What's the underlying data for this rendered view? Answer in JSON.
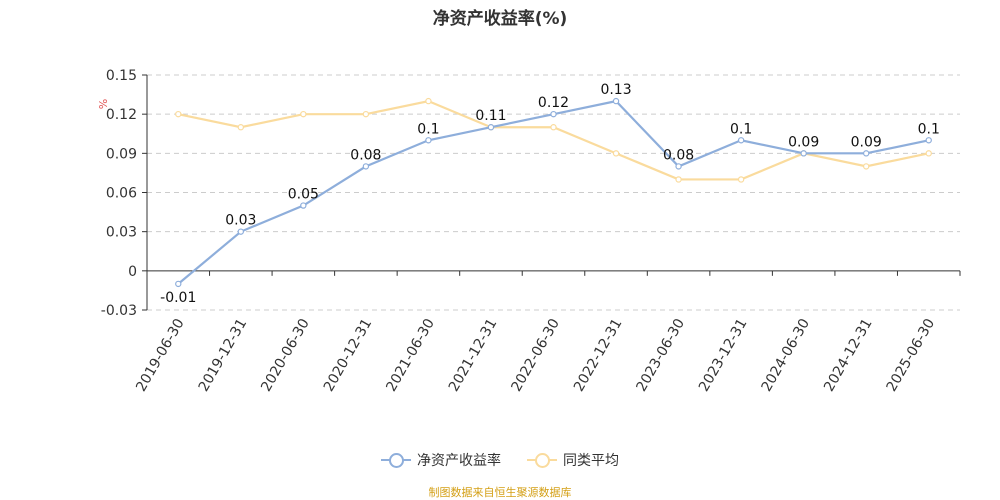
{
  "colors": {
    "series_main": "#8eaedb",
    "series_avg": "#fadb9d",
    "unit": "#e05555",
    "source": "#d4a017"
  },
  "chart_data": {
    "type": "line",
    "title": "净资产收益率(%)",
    "ylabel": "%",
    "categories": [
      "2019-06-30",
      "2019-12-31",
      "2020-06-30",
      "2020-12-31",
      "2021-06-30",
      "2021-12-31",
      "2022-06-30",
      "2022-12-31",
      "2023-06-30",
      "2023-12-31",
      "2024-06-30",
      "2024-12-31",
      "2025-06-30"
    ],
    "y_ticks": [
      "0.15",
      "0.12",
      "0.09",
      "0.06",
      "0.03",
      "0",
      "-0.03"
    ],
    "ylim": [
      -0.03,
      0.15
    ],
    "grid": true,
    "series": [
      {
        "name": "净资产收益率",
        "values": [
          -0.01,
          0.03,
          0.05,
          0.08,
          0.1,
          0.11,
          0.12,
          0.13,
          0.08,
          0.1,
          0.09,
          0.09,
          0.1
        ],
        "labels": [
          "-0.01",
          "0.03",
          "0.05",
          "0.08",
          "0.1",
          "0.11",
          "0.12",
          "0.13",
          "0.08",
          "0.1",
          "0.09",
          "0.09",
          "0.1"
        ]
      },
      {
        "name": "同类平均",
        "values": [
          0.12,
          0.11,
          0.12,
          0.12,
          0.13,
          0.11,
          0.11,
          0.09,
          0.07,
          0.07,
          0.09,
          0.08,
          0.09
        ]
      }
    ],
    "legend_position": "bottom-center"
  },
  "legend": {
    "main_label": "净资产收益率",
    "avg_label": "同类平均"
  },
  "source_note": "制图数据来自恒生聚源数据库"
}
